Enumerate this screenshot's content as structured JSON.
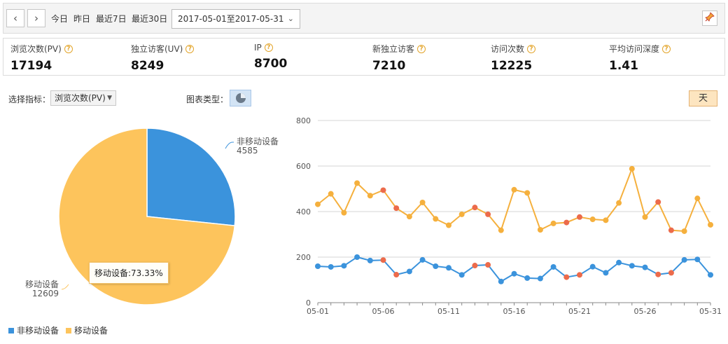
{
  "toolbar": {
    "prev_icon": "chevron-left-icon",
    "next_icon": "chevron-right-icon",
    "quick_ranges": [
      "今日",
      "昨日",
      "最近7日",
      "最近30日"
    ],
    "date_range": "2017-05-01至2017-05-31",
    "pin_icon": "pin-icon"
  },
  "metrics": [
    {
      "label": "浏览次数(PV)",
      "value": "17194"
    },
    {
      "label": "独立访客(UV)",
      "value": "8249"
    },
    {
      "label": "IP",
      "value": "8700"
    },
    {
      "label": "新独立访客",
      "value": "7210"
    },
    {
      "label": "访问次数",
      "value": "12225"
    },
    {
      "label": "平均访问深度",
      "value": "1.41"
    }
  ],
  "controls": {
    "metric_label": "选择指标：",
    "metric_value": "浏览次数(PV)",
    "chart_type_label": "图表类型：",
    "chart_type_icon": "pie-chart-icon",
    "granularity": "天"
  },
  "tooltip": "移动设备:73.33%",
  "chart_data": [
    {
      "type": "pie",
      "slices": [
        {
          "name": "非移动设备",
          "value": 4585,
          "color": "#3b93dc"
        },
        {
          "name": "移动设备",
          "value": 12609,
          "color": "#fdc45c"
        }
      ]
    },
    {
      "type": "line",
      "x": [
        "05-01",
        "05-02",
        "05-03",
        "05-04",
        "05-05",
        "05-06",
        "05-07",
        "05-08",
        "05-09",
        "05-10",
        "05-11",
        "05-12",
        "05-13",
        "05-14",
        "05-15",
        "05-16",
        "05-17",
        "05-18",
        "05-19",
        "05-20",
        "05-21",
        "05-22",
        "05-23",
        "05-24",
        "05-25",
        "05-26",
        "05-27",
        "05-28",
        "05-29",
        "05-30",
        "05-31"
      ],
      "x_ticks": [
        "05-01",
        "05-06",
        "05-11",
        "05-16",
        "05-21",
        "05-26",
        "05-31"
      ],
      "ylim": [
        0,
        800
      ],
      "y_ticks": [
        0,
        200,
        400,
        600,
        800
      ],
      "grid": true,
      "weekend_color": "#ec6b4b",
      "weekend_indices": [
        5,
        6,
        12,
        13,
        19,
        20,
        26,
        27
      ],
      "series": [
        {
          "name": "移动设备",
          "color": "#f5b03d",
          "values": [
            432,
            478,
            395,
            525,
            470,
            494,
            415,
            378,
            440,
            368,
            340,
            388,
            418,
            388,
            318,
            496,
            482,
            320,
            348,
            352,
            376,
            366,
            362,
            438,
            588,
            376,
            442,
            318,
            314,
            458,
            342
          ]
        },
        {
          "name": "非移动设备",
          "color": "#3b93dc",
          "values": [
            160,
            157,
            162,
            200,
            185,
            187,
            123,
            137,
            188,
            160,
            153,
            122,
            163,
            166,
            93,
            127,
            108,
            106,
            157,
            112,
            122,
            158,
            131,
            176,
            162,
            155,
            124,
            131,
            188,
            190,
            122
          ]
        }
      ]
    }
  ],
  "legend": [
    {
      "name": "非移动设备",
      "color": "#3b93dc"
    },
    {
      "name": "移动设备",
      "color": "#fdc45c"
    }
  ]
}
